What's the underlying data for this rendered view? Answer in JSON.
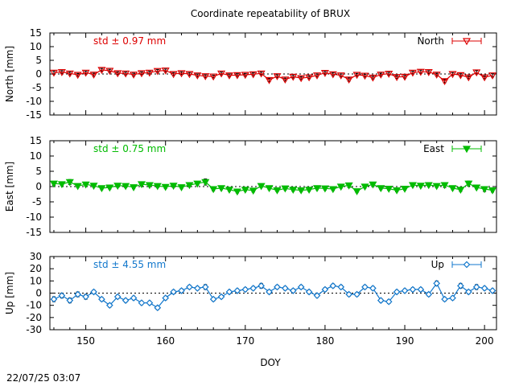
{
  "title": "Coordinate repeatability of BRUX",
  "timestamp": "22/07/25 03:07",
  "xlabel": "DOY",
  "chart_data": [
    {
      "type": "line",
      "name": "North",
      "ylabel": "North [mm]",
      "std_label": "std ± 0.97 mm",
      "color": "#dd0000",
      "marker": "triangle-down-open",
      "xlim": [
        145.5,
        201.5
      ],
      "ylim": [
        -15,
        15
      ],
      "yticks": [
        15,
        10,
        5,
        0,
        -5,
        -10,
        -15
      ],
      "ytick_labels": [
        "15",
        "10",
        "5",
        "0",
        "-5",
        "-10",
        "-15"
      ],
      "x": [
        146,
        147,
        148,
        149,
        150,
        151,
        152,
        153,
        154,
        155,
        156,
        157,
        158,
        159,
        160,
        161,
        162,
        163,
        164,
        165,
        166,
        167,
        168,
        169,
        170,
        171,
        172,
        173,
        174,
        175,
        176,
        177,
        178,
        179,
        180,
        181,
        182,
        183,
        184,
        185,
        186,
        187,
        188,
        189,
        190,
        191,
        192,
        193,
        194,
        195,
        196,
        197,
        198,
        199,
        200,
        201
      ],
      "y": [
        0.5,
        0.7,
        0.2,
        -0.3,
        0.5,
        -0.2,
        1.5,
        1.2,
        0.3,
        0.2,
        -0.2,
        0.3,
        0.5,
        1.1,
        1.3,
        0.0,
        0.3,
        0.0,
        -0.5,
        -0.8,
        -0.9,
        0.2,
        -0.5,
        -0.4,
        -0.3,
        -0.1,
        0.2,
        -2.2,
        -0.8,
        -2.0,
        -1.0,
        -1.5,
        -1.2,
        -0.5,
        0.4,
        -0.1,
        -0.5,
        -2.0,
        -0.3,
        -0.6,
        -1.3,
        -0.2,
        0.1,
        -1.1,
        -1.0,
        0.5,
        0.8,
        0.7,
        -0.2,
        -2.6,
        0.0,
        -0.4,
        -1.2,
        0.6,
        -1.2,
        -0.5
      ],
      "err": [
        0.6,
        0.5,
        0.5,
        0.5,
        0.5,
        0.5,
        0.5,
        0.5,
        0.5,
        0.5,
        0.5,
        0.5,
        0.5,
        0.5,
        0.5,
        0.5,
        0.5,
        0.5,
        0.5,
        0.5,
        0.5,
        0.5,
        0.5,
        0.5,
        0.5,
        0.5,
        0.5,
        0.6,
        0.5,
        0.5,
        0.5,
        0.5,
        0.5,
        0.5,
        0.5,
        0.5,
        0.5,
        0.6,
        0.5,
        0.5,
        0.5,
        0.5,
        0.5,
        0.5,
        0.5,
        0.5,
        0.6,
        0.5,
        0.5,
        0.6,
        0.5,
        0.5,
        0.5,
        0.6,
        0.5,
        0.6
      ]
    },
    {
      "type": "line",
      "name": "East",
      "ylabel": "East [mm]",
      "std_label": "std ± 0.75 mm",
      "color": "#00bb00",
      "marker": "triangle-down-filled",
      "xlim": [
        145.5,
        201.5
      ],
      "ylim": [
        -15,
        15
      ],
      "yticks": [
        15,
        10,
        5,
        0,
        -5,
        -10,
        -15
      ],
      "ytick_labels": [
        "15",
        "10",
        "5",
        "0",
        "-5",
        "-10",
        "-15"
      ],
      "x": [
        146,
        147,
        148,
        149,
        150,
        151,
        152,
        153,
        154,
        155,
        156,
        157,
        158,
        159,
        160,
        161,
        162,
        163,
        164,
        165,
        166,
        167,
        168,
        169,
        170,
        171,
        172,
        173,
        174,
        175,
        176,
        177,
        178,
        179,
        180,
        181,
        182,
        183,
        184,
        185,
        186,
        187,
        188,
        189,
        190,
        191,
        192,
        193,
        194,
        195,
        196,
        197,
        198,
        199,
        200,
        201
      ],
      "y": [
        1.0,
        0.8,
        1.5,
        0.2,
        0.7,
        0.3,
        -0.5,
        -0.3,
        0.3,
        0.2,
        -0.2,
        0.8,
        0.5,
        0.2,
        -0.1,
        0.3,
        -0.2,
        0.5,
        1.0,
        1.5,
        -0.8,
        -0.5,
        -1.0,
        -1.6,
        -1.0,
        -1.3,
        0.2,
        -0.5,
        -1.2,
        -0.6,
        -1.0,
        -1.2,
        -1.0,
        -0.5,
        -0.6,
        -0.8,
        0.0,
        0.4,
        -1.5,
        0.0,
        0.7,
        -0.5,
        -0.7,
        -1.2,
        -0.7,
        0.5,
        0.3,
        0.5,
        0.2,
        0.5,
        -0.5,
        -1.0,
        1.0,
        -0.3,
        -0.8,
        -1.2
      ],
      "err": [
        0.6,
        0.5,
        0.8,
        0.5,
        0.5,
        0.5,
        0.5,
        0.5,
        0.5,
        0.5,
        0.5,
        0.6,
        0.5,
        0.5,
        0.5,
        0.5,
        0.5,
        0.5,
        0.5,
        1.0,
        0.6,
        0.5,
        0.5,
        0.5,
        0.5,
        0.5,
        0.5,
        0.5,
        0.5,
        0.5,
        0.5,
        0.5,
        0.5,
        0.5,
        0.5,
        0.5,
        0.5,
        0.7,
        0.5,
        0.5,
        0.7,
        0.5,
        0.5,
        0.5,
        0.5,
        0.5,
        0.5,
        0.5,
        0.5,
        0.8,
        0.5,
        0.6,
        0.8,
        0.5,
        0.8,
        0.6
      ]
    },
    {
      "type": "line",
      "name": "Up",
      "ylabel": "Up [mm]",
      "std_label": "std ± 4.55 mm",
      "color": "#1177cc",
      "marker": "diamond-open",
      "xlim": [
        145.5,
        201.5
      ],
      "ylim": [
        -30,
        30
      ],
      "yticks": [
        30,
        20,
        10,
        0,
        -10,
        -20,
        -30
      ],
      "ytick_labels": [
        "30",
        "20",
        "10",
        "0",
        "-10",
        "-20",
        "-30"
      ],
      "x": [
        146,
        147,
        148,
        149,
        150,
        151,
        152,
        153,
        154,
        155,
        156,
        157,
        158,
        159,
        160,
        161,
        162,
        163,
        164,
        165,
        166,
        167,
        168,
        169,
        170,
        171,
        172,
        173,
        174,
        175,
        176,
        177,
        178,
        179,
        180,
        181,
        182,
        183,
        184,
        185,
        186,
        187,
        188,
        189,
        190,
        191,
        192,
        193,
        194,
        195,
        196,
        197,
        198,
        199,
        200,
        201
      ],
      "y": [
        -5,
        -2,
        -6,
        -1,
        -3,
        1,
        -5,
        -10,
        -3,
        -6,
        -4,
        -8,
        -8,
        -12,
        -4,
        1,
        2,
        5,
        4,
        5,
        -5,
        -3,
        1,
        2,
        3,
        4,
        6,
        1,
        5,
        4,
        2,
        5,
        1,
        -2,
        3,
        6,
        5,
        -1,
        -1,
        5,
        4,
        -6,
        -7,
        1,
        2,
        3,
        3,
        -1,
        8,
        -5,
        -4,
        6,
        1,
        5,
        4,
        2
      ],
      "err": [
        2,
        2,
        2,
        2,
        2,
        1.5,
        1.5,
        1.5,
        1.5,
        1.5,
        1.5,
        1.5,
        1.5,
        1.5,
        1.5,
        1.5,
        1.5,
        1.5,
        1.5,
        2,
        1.5,
        1.5,
        1.5,
        1.5,
        1.5,
        1.5,
        2,
        1.5,
        1.5,
        1.5,
        1.5,
        1.5,
        1.5,
        1.5,
        1.5,
        1.5,
        1.5,
        1.5,
        1.5,
        1.5,
        1.5,
        1.5,
        1.5,
        1.5,
        1.5,
        1.5,
        1.5,
        1.5,
        2,
        1.5,
        1.5,
        2,
        1.5,
        2,
        1.5,
        1.5
      ]
    }
  ],
  "xaxis": {
    "ticks": [
      150,
      160,
      170,
      180,
      190,
      200
    ],
    "tick_labels": [
      "150",
      "160",
      "170",
      "180",
      "190",
      "200"
    ]
  }
}
